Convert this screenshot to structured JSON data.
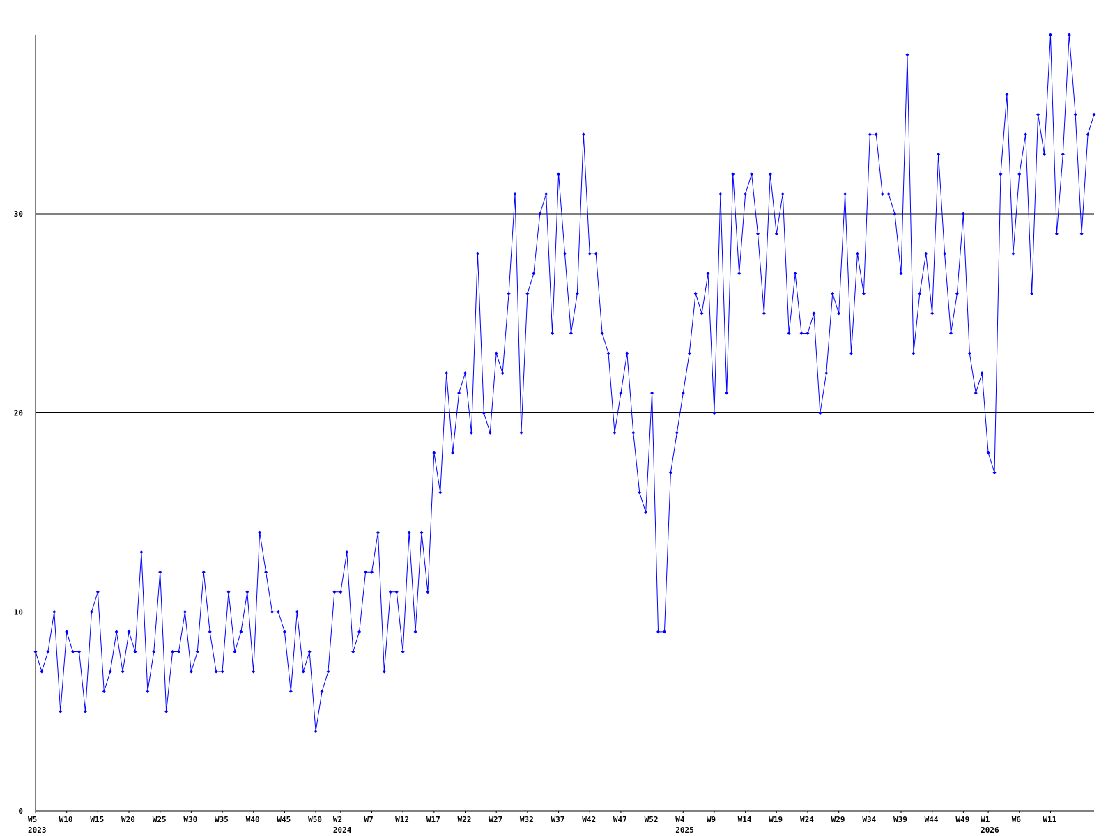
{
  "chart_data": {
    "type": "line",
    "xlabel": "",
    "ylabel": "",
    "ylim": [
      0,
      39
    ],
    "grid": true,
    "legend": "none",
    "colors": {
      "series": "#0000ff",
      "grid": "#000000",
      "axis": "#000000",
      "background": "#ffffff"
    },
    "y_ticks": [
      {
        "value": 0,
        "label": "0"
      },
      {
        "value": 10,
        "label": "10"
      },
      {
        "value": 20,
        "label": "20"
      },
      {
        "value": 30,
        "label": "30"
      }
    ],
    "x_ticks": [
      {
        "index": 0,
        "label": "W5",
        "year": "2023"
      },
      {
        "index": 5,
        "label": "W10"
      },
      {
        "index": 10,
        "label": "W15"
      },
      {
        "index": 15,
        "label": "W20"
      },
      {
        "index": 20,
        "label": "W25"
      },
      {
        "index": 25,
        "label": "W30"
      },
      {
        "index": 30,
        "label": "W35"
      },
      {
        "index": 35,
        "label": "W40"
      },
      {
        "index": 40,
        "label": "W45"
      },
      {
        "index": 45,
        "label": "W50"
      },
      {
        "index": 49,
        "label": "W2",
        "year": "2024"
      },
      {
        "index": 54,
        "label": "W7"
      },
      {
        "index": 59,
        "label": "W12"
      },
      {
        "index": 64,
        "label": "W17"
      },
      {
        "index": 69,
        "label": "W22"
      },
      {
        "index": 74,
        "label": "W27"
      },
      {
        "index": 79,
        "label": "W32"
      },
      {
        "index": 84,
        "label": "W37"
      },
      {
        "index": 89,
        "label": "W42"
      },
      {
        "index": 94,
        "label": "W47"
      },
      {
        "index": 99,
        "label": "W52"
      },
      {
        "index": 104,
        "label": "W4",
        "year": "2025"
      },
      {
        "index": 109,
        "label": "W9"
      },
      {
        "index": 114,
        "label": "W14"
      },
      {
        "index": 119,
        "label": "W19"
      },
      {
        "index": 124,
        "label": "W24"
      },
      {
        "index": 129,
        "label": "W29"
      },
      {
        "index": 134,
        "label": "W34"
      },
      {
        "index": 139,
        "label": "W39"
      },
      {
        "index": 144,
        "label": "W44"
      },
      {
        "index": 149,
        "label": "W49"
      },
      {
        "index": 153,
        "label": "W1",
        "year": "2026"
      },
      {
        "index": 158,
        "label": "W6"
      },
      {
        "index": 163,
        "label": "W11"
      }
    ],
    "series": [
      {
        "values": [
          8,
          7,
          8,
          10,
          5,
          9,
          8,
          8,
          5,
          10,
          11,
          6,
          7,
          9,
          7,
          9,
          8,
          13,
          6,
          8,
          12,
          5,
          8,
          8,
          10,
          7,
          8,
          12,
          9,
          7,
          7,
          11,
          8,
          9,
          11,
          7,
          14,
          12,
          10,
          10,
          9,
          6,
          10,
          7,
          8,
          4,
          6,
          7,
          11,
          11,
          13,
          8,
          9,
          12,
          12,
          14,
          7,
          11,
          11,
          8,
          14,
          9,
          14,
          11,
          18,
          16,
          22,
          18,
          21,
          22,
          19,
          28,
          20,
          19,
          23,
          22,
          26,
          31,
          19,
          26,
          27,
          30,
          31,
          24,
          32,
          28,
          24,
          26,
          34,
          28,
          28,
          24,
          23,
          19,
          21,
          23,
          19,
          16,
          15,
          21,
          9,
          9,
          17,
          19,
          21,
          23,
          26,
          25,
          27,
          20,
          31,
          21,
          32,
          27,
          31,
          32,
          29,
          25,
          32,
          29,
          31,
          24,
          27,
          24,
          24,
          25,
          20,
          22,
          26,
          25,
          31,
          23,
          28,
          26,
          34,
          34,
          31,
          31,
          30,
          27,
          38,
          23,
          26,
          28,
          25,
          33,
          28,
          24,
          26,
          30,
          23,
          21,
          22,
          18,
          17,
          32,
          36,
          28,
          32,
          34,
          26,
          35,
          33,
          39,
          29,
          33,
          39,
          35,
          29,
          34,
          35
        ]
      }
    ]
  }
}
